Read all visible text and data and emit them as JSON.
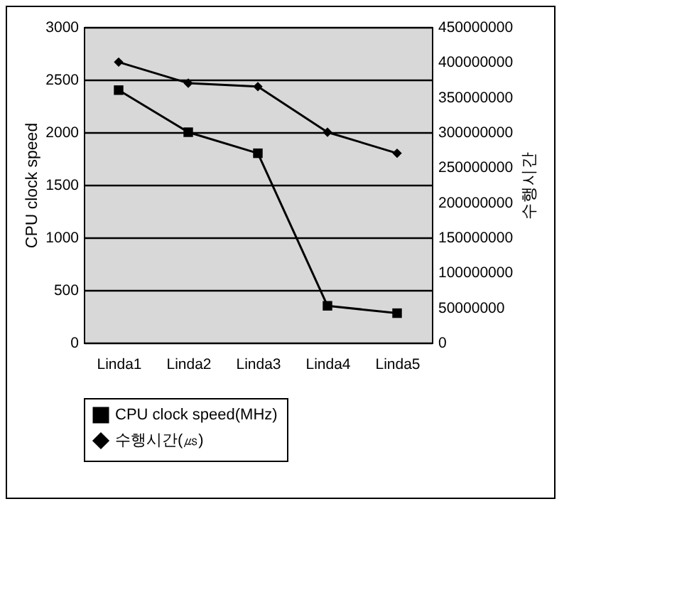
{
  "chart_data": {
    "type": "line",
    "xlabel": null,
    "ylabel": "CPU clock speed",
    "y2label": "수행시간",
    "categories": [
      "Linda1",
      "Linda2",
      "Linda3",
      "Linda4",
      "Linda5"
    ],
    "series": [
      {
        "name": "CPU clock speed(MHz)",
        "color": "#000000",
        "marker": "square",
        "values": [
          2400,
          2000,
          1800,
          350,
          280
        ]
      },
      {
        "name": "수행시간(㎲)",
        "color": "#000000",
        "marker": "diamond",
        "axis": "y2",
        "values": [
          400000000,
          370000000,
          365000000,
          300000000,
          270000000
        ]
      }
    ],
    "ylim": [
      0,
      3000
    ],
    "yticks": [
      0,
      500,
      1000,
      1500,
      2000,
      2500,
      3000
    ],
    "y2lim": [
      0,
      450000000
    ],
    "y2ticks": [
      0,
      50000000,
      100000000,
      150000000,
      200000000,
      250000000,
      300000000,
      350000000,
      400000000,
      450000000
    ],
    "grid": "y",
    "legend": "bottom"
  }
}
